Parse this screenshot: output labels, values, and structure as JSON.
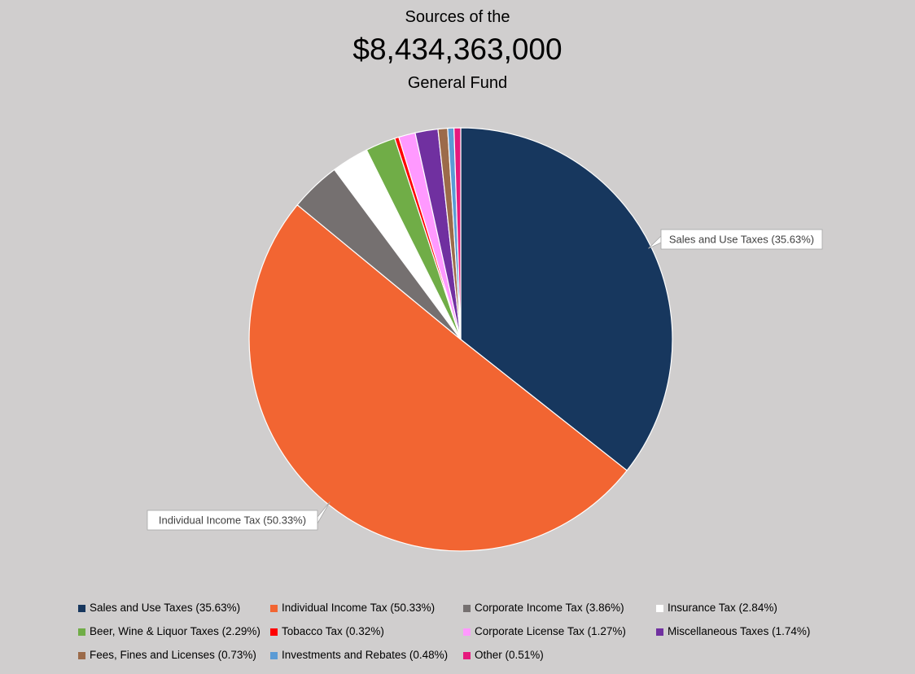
{
  "title": {
    "line1": "Sources of the",
    "line2": "$8,434,363,000",
    "line3": "General Fund"
  },
  "chart_data": {
    "type": "pie",
    "title": "Sources of the $8,434,363,000 General Fund",
    "start_angle_deg": 0,
    "direction": "clockwise",
    "legend_position": "bottom",
    "slices": [
      {
        "label": "Sales and Use Taxes (35.63%)",
        "value": 35.63,
        "color": "#17375e"
      },
      {
        "label": "Individual Income Tax (50.33%)",
        "value": 50.33,
        "color": "#f26532"
      },
      {
        "label": "Corporate Income Tax (3.86%)",
        "value": 3.86,
        "color": "#757070"
      },
      {
        "label": "Insurance Tax (2.84%)",
        "value": 2.84,
        "color": "#ffffff"
      },
      {
        "label": "Beer, Wine & Liquor Taxes (2.29%)",
        "value": 2.29,
        "color": "#70ad47"
      },
      {
        "label": "Tobacco Tax (0.32%)",
        "value": 0.32,
        "color": "#ff0000"
      },
      {
        "label": "Corporate License Tax (1.27%)",
        "value": 1.27,
        "color": "#ff99ff"
      },
      {
        "label": "Miscellaneous Taxes (1.74%)",
        "value": 1.74,
        "color": "#7030a0"
      },
      {
        "label": "Fees, Fines and Licenses (0.73%)",
        "value": 0.73,
        "color": "#9c6b4a"
      },
      {
        "label": "Investments and Rebates (0.48%)",
        "value": 0.48,
        "color": "#5b9bd5"
      },
      {
        "label": "Other (0.51%)",
        "value": 0.51,
        "color": "#e6197d"
      }
    ],
    "callouts": [
      {
        "slice_index": 0,
        "text": "Sales and Use Taxes (35.63%)"
      },
      {
        "slice_index": 1,
        "text": "Individual Income Tax (50.33%)"
      }
    ]
  }
}
